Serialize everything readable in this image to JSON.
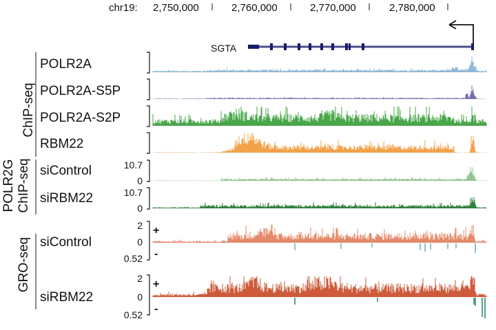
{
  "coords": {
    "chrom": "chr19:",
    "ticks": [
      "2,750,000",
      "2,760,000",
      "2,770,000",
      "2,780,000"
    ]
  },
  "gene": {
    "name": "SGTA"
  },
  "groups": {
    "chipseq": "ChIP-seq",
    "polr2g_line1": "POLR2G",
    "polr2g_line2": "ChIP-seq",
    "groseq": "GRO-seq"
  },
  "tracks": [
    {
      "label": "POLR2A",
      "color": "#8db8d6"
    },
    {
      "label": "POLR2A-S5P",
      "color": "#7a6ca8"
    },
    {
      "label": "POLR2A-S2P",
      "color": "#4aa64a"
    },
    {
      "label": "RBM22",
      "color": "#f2a24a"
    },
    {
      "label": "siControl",
      "scale_top": "10.7",
      "scale_bottom": "0",
      "color": "#93c693"
    },
    {
      "label": "siRBM22",
      "scale_top": "10.7",
      "scale_bottom": "0",
      "color": "#2f7f3a"
    },
    {
      "label": "siControl",
      "scale_top": "2",
      "scale_mid": "0",
      "scale_bottom": "0.52",
      "plus": "+",
      "minus": "-",
      "color": "#e48a6a",
      "neg_color": "#7aaed0"
    },
    {
      "label": "siRBM22",
      "scale_top": "2",
      "scale_mid": "0",
      "scale_bottom": "0.52",
      "plus": "+",
      "minus": "-",
      "color": "#cd5a3a",
      "neg_color": "#2a8a78"
    }
  ]
}
